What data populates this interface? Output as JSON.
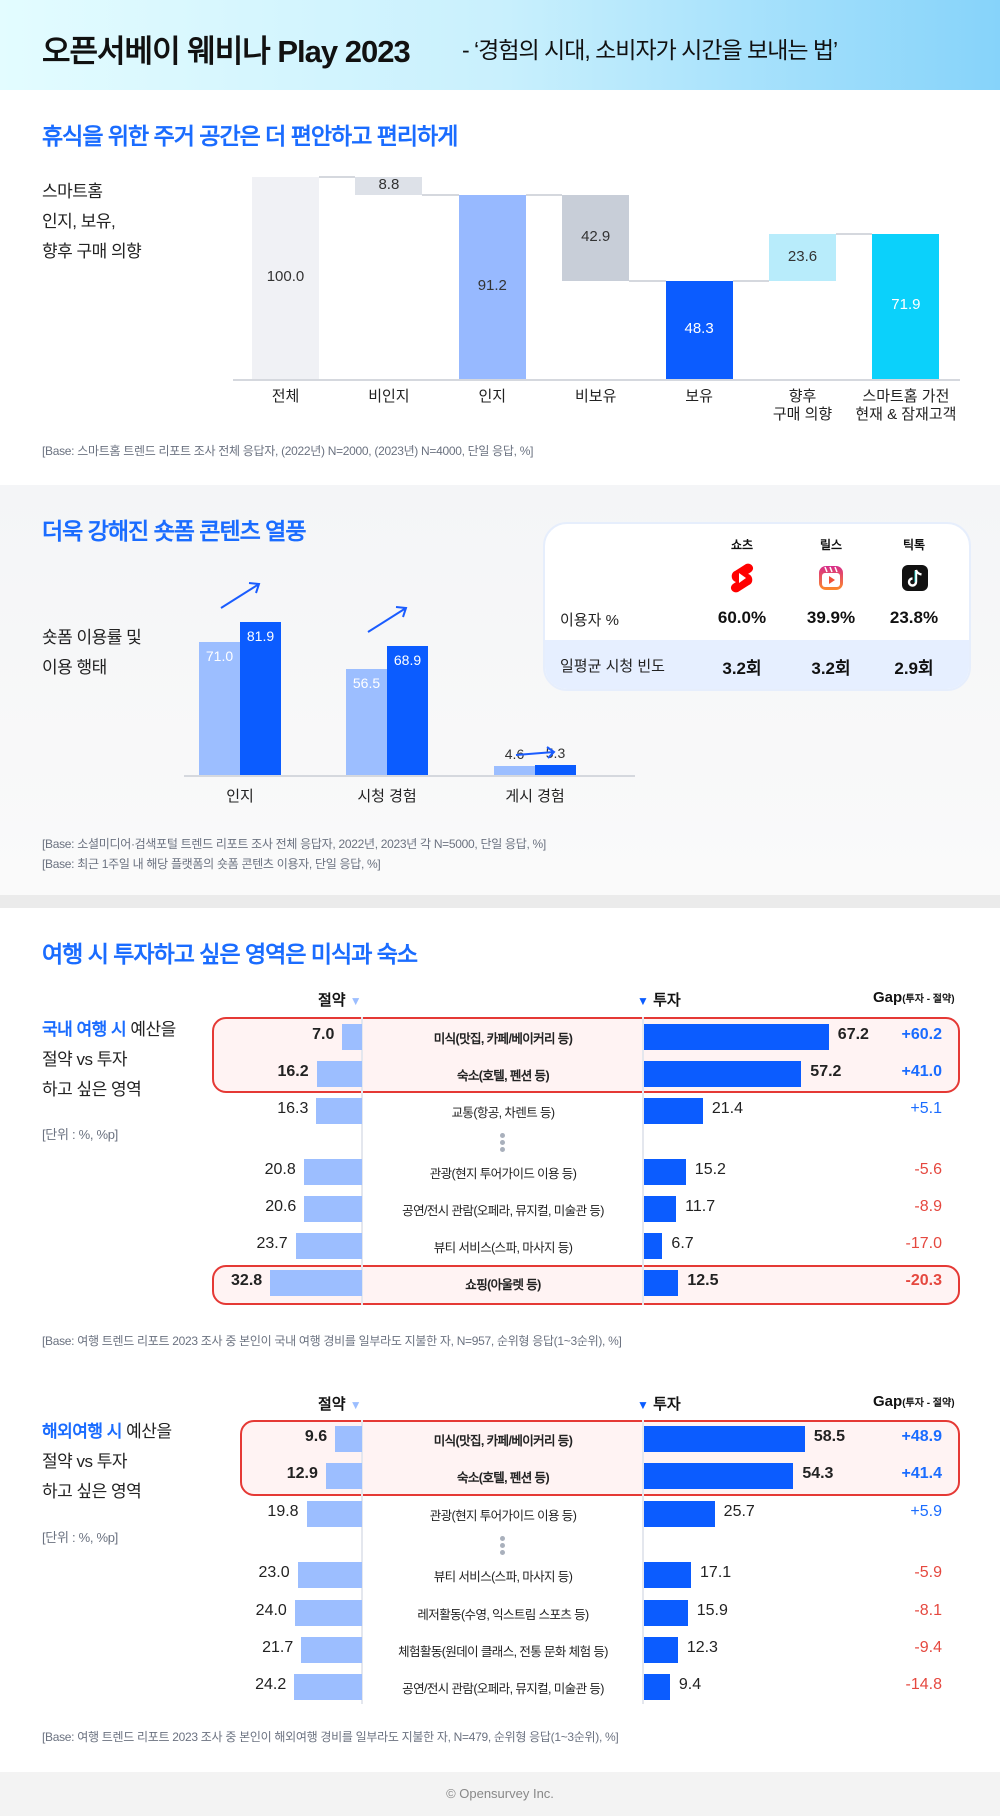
{
  "header": {
    "title": "오픈서베이 웨비나 Play 2023",
    "subtitle": "- ‘경험의 시대, 소비자가 시간을 보내는 법’",
    "gradient": [
      "#e3fcff",
      "#86d3fa"
    ]
  },
  "section1": {
    "title": "휴식을 위한 주거 공간은 더 편안하고 편리하게",
    "side_label": [
      "스마트홈",
      "인지, 보유,",
      "향후 구매 의향"
    ],
    "note": "[Base: 스마트홈 트렌드 리포트 조사 전체 응답자, (2022년) N=2000, (2023년) N=4000, 단일 응답, %]"
  },
  "section2": {
    "title": "더욱 강해진 숏폼 콘텐츠 열풍",
    "side_label": [
      "숏폼 이용률 및",
      "이용 행태"
    ],
    "notes": [
      "[Base: 소셜미디어·검색포털 트렌드 리포트 조사 전체 응답자, 2022년, 2023년 각 N=5000, 단일 응답, %]",
      "[Base: 최근 1주일 내 해당 플랫폼의 숏폼 콘텐츠 이용자, 단일 응답, %]"
    ],
    "card": {
      "platforms": [
        {
          "name": "쇼츠",
          "icon": "youtube-shorts-icon",
          "users": "60.0%",
          "freq": "3.2회"
        },
        {
          "name": "릴스",
          "icon": "instagram-reels-icon",
          "users": "39.9%",
          "freq": "3.2회"
        },
        {
          "name": "틱톡",
          "icon": "tiktok-icon",
          "users": "23.8%",
          "freq": "2.9회"
        }
      ],
      "row_labels": [
        "이용자 %",
        "일평균 시청 빈도"
      ]
    }
  },
  "section3": {
    "title": "여행 시 투자하고 싶은 영역은 미식과 숙소",
    "col_save": "절약",
    "col_invest": "투자",
    "col_gap": "Gap",
    "col_gap_sub": "(투자 - 절약)",
    "unit": "[단위 : %, %p]",
    "domestic": {
      "side_label_highlight": "국내 여행 시",
      "side_label": [
        " 예산을",
        "절약 vs 투자",
        "하고 싶은 영역"
      ],
      "note": "[Base: 여행 트렌드 리포트 2023 조사 중 본인이 국내 여행 경비를 일부라도 지불한 자, N=957, 순위형 응답(1~3순위), %]"
    },
    "overseas": {
      "side_label_highlight": "해외여행 시",
      "side_label": [
        " 예산을",
        "절약 vs 투자",
        "하고 싶은 영역"
      ],
      "note": "[Base: 여행 트렌드 리포트 2023 조사 중 본인이 해외여행 경비를 일부라도 지불한 자, N=479, 순위형 응답(1~3순위), %]"
    }
  },
  "footer": {
    "text": "© Opensurvey Inc."
  },
  "colors": {
    "accent": "#1a6cff",
    "dark_blue": "#0b5cff",
    "light_blue": "#9cbeff",
    "negative": "#e5483f",
    "highlight_border": "#e53935"
  },
  "chart_data": [
    {
      "type": "bar",
      "subtype": "waterfall",
      "categories": [
        "전체",
        "비인지",
        "인지",
        "비보유",
        "보유",
        "향후\n구매 의향",
        "스마트홈 가전\n현재 & 잠재고객"
      ],
      "values": [
        100.0,
        8.8,
        91.2,
        42.9,
        48.3,
        23.6,
        71.9
      ],
      "bases": [
        0,
        91.2,
        0,
        48.3,
        0,
        48.3,
        0
      ],
      "labels": [
        "100.0",
        "8.8",
        "91.2",
        "42.9",
        "48.3",
        "23.6",
        "71.9"
      ],
      "colors": [
        "#f0f1f5",
        "#dde1e8",
        "#97b9ff",
        "#c8ced8",
        "#0b5cff",
        "#b8ecfb",
        "#0bd1fb"
      ],
      "ylim": [
        0,
        100
      ],
      "grid": false
    },
    {
      "type": "bar",
      "subtype": "grouped",
      "categories": [
        "인지",
        "시청 경험",
        "게시 경험"
      ],
      "series": [
        {
          "values": [
            71.0,
            56.5,
            4.6
          ],
          "labels": [
            "71.0",
            "56.5",
            "4.6"
          ],
          "color": "#9cbeff"
        },
        {
          "values": [
            81.9,
            68.9,
            5.3
          ],
          "labels": [
            "81.9",
            "68.9",
            "5.3"
          ],
          "color": "#0b5cff"
        }
      ],
      "grid": false
    },
    {
      "type": "bar",
      "subtype": "diverging",
      "key": "domestic",
      "ellipsis_after": 2,
      "rows": [
        {
          "label": "미식(맛집, 카페/베이커리 등)",
          "save": 7.0,
          "invest": 67.2,
          "save_label": "7.0",
          "invest_label": "67.2",
          "gap": "+60.2",
          "highlight": true
        },
        {
          "label": "숙소(호텔, 펜션 등)",
          "save": 16.2,
          "invest": 57.2,
          "save_label": "16.2",
          "invest_label": "57.2",
          "gap": "+41.0",
          "highlight": true
        },
        {
          "label": "교통(항공, 차렌트 등)",
          "save": 16.3,
          "invest": 21.4,
          "save_label": "16.3",
          "invest_label": "21.4",
          "gap": "+5.1",
          "highlight": false
        },
        {
          "label": "관광(현지 투어가이드 이용 등)",
          "save": 20.8,
          "invest": 15.2,
          "save_label": "20.8",
          "invest_label": "15.2",
          "gap": "-5.6",
          "highlight": false
        },
        {
          "label": "공연/전시 관람(오페라, 뮤지컬, 미술관 등)",
          "save": 20.6,
          "invest": 11.7,
          "save_label": "20.6",
          "invest_label": "11.7",
          "gap": "-8.9",
          "highlight": false
        },
        {
          "label": "뷰티 서비스(스파, 마사지 등)",
          "save": 23.7,
          "invest": 6.7,
          "save_label": "23.7",
          "invest_label": "6.7",
          "gap": "-17.0",
          "highlight": false
        },
        {
          "label": "쇼핑(아울렛 등)",
          "save": 32.8,
          "invest": 12.5,
          "save_label": "32.8",
          "invest_label": "12.5",
          "gap": "-20.3",
          "highlight": true
        }
      ]
    },
    {
      "type": "bar",
      "subtype": "diverging",
      "key": "overseas",
      "ellipsis_after": 2,
      "rows": [
        {
          "label": "미식(맛집, 카페/베이커리 등)",
          "save": 9.6,
          "invest": 58.5,
          "save_label": "9.6",
          "invest_label": "58.5",
          "gap": "+48.9",
          "highlight": true
        },
        {
          "label": "숙소(호텔, 펜션 등)",
          "save": 12.9,
          "invest": 54.3,
          "save_label": "12.9",
          "invest_label": "54.3",
          "gap": "+41.4",
          "highlight": true
        },
        {
          "label": "관광(현지 투어가이드 이용 등)",
          "save": 19.8,
          "invest": 25.7,
          "save_label": "19.8",
          "invest_label": "25.7",
          "gap": "+5.9",
          "highlight": false
        },
        {
          "label": "뷰티 서비스(스파, 마사지 등)",
          "save": 23.0,
          "invest": 17.1,
          "save_label": "23.0",
          "invest_label": "17.1",
          "gap": "-5.9",
          "highlight": false
        },
        {
          "label": "레저활동(수영, 익스트림 스포츠 등)",
          "save": 24.0,
          "invest": 15.9,
          "save_label": "24.0",
          "invest_label": "15.9",
          "gap": "-8.1",
          "highlight": false
        },
        {
          "label": "체험활동(원데이 클래스, 전통 문화 체험 등)",
          "save": 21.7,
          "invest": 12.3,
          "save_label": "21.7",
          "invest_label": "12.3",
          "gap": "-9.4",
          "highlight": false
        },
        {
          "label": "공연/전시 관람(오페라, 뮤지컬, 미술관 등)",
          "save": 24.2,
          "invest": 9.4,
          "save_label": "24.2",
          "invest_label": "9.4",
          "gap": "-14.8",
          "highlight": false
        }
      ]
    }
  ]
}
